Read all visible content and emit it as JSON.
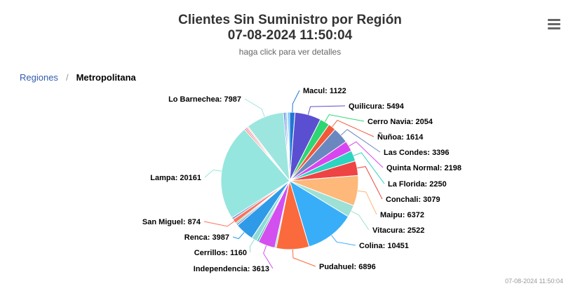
{
  "chart_data": {
    "type": "pie",
    "title": "Clientes Sin Suministro por Región",
    "subtitle": "07-08-2024 11:50:04",
    "caption": "haga click para ver detalles",
    "series": [
      {
        "name": "Macul",
        "value": 1122,
        "color": "#1f77d4"
      },
      {
        "name": "Quilicura",
        "value": 5494,
        "color": "#5b4fd1"
      },
      {
        "name": "Cerro Navia",
        "value": 2054,
        "color": "#2ed573"
      },
      {
        "name": "Ñuñoa",
        "value": 1614,
        "color": "#f05a3a"
      },
      {
        "name": "Las Condes",
        "value": 3396,
        "color": "#6b87c0"
      },
      {
        "name": "Quinta Normal",
        "value": 2198,
        "color": "#d946ef"
      },
      {
        "name": "La Florida",
        "value": 2250,
        "color": "#2dd4bf"
      },
      {
        "name": "Conchali",
        "value": 3079,
        "color": "#ef4444"
      },
      {
        "name": "Maipu",
        "value": 6372,
        "color": "#fdb87a"
      },
      {
        "name": "Vitacura",
        "value": 2522,
        "color": "#9de0d5"
      },
      {
        "name": "Colina",
        "value": 10451,
        "color": "#38aef8"
      },
      {
        "name": "Pudahuel",
        "value": 6896,
        "color": "#fb6a3c"
      },
      {
        "name": "",
        "value": 300,
        "color": "#60e6b0"
      },
      {
        "name": "Independencia",
        "value": 3613,
        "color": "#d44ff0"
      },
      {
        "name": "",
        "value": 400,
        "color": "#2bbfa0"
      },
      {
        "name": "Cerrillos",
        "value": 1160,
        "color": "#8fdad8"
      },
      {
        "name": "Renca",
        "value": 3987,
        "color": "#2f9be8"
      },
      {
        "name": "",
        "value": 350,
        "color": "#7c6fd6"
      },
      {
        "name": "",
        "value": 300,
        "color": "#4ade80"
      },
      {
        "name": "San Miguel",
        "value": 874,
        "color": "#f97362"
      },
      {
        "name": "",
        "value": 450,
        "color": "#8798cf"
      },
      {
        "name": "Lampa",
        "value": 20161,
        "color": "#95e6de"
      },
      {
        "name": "",
        "value": 350,
        "color": "#fb8a55"
      },
      {
        "name": "",
        "value": 300,
        "color": "#d966f0"
      },
      {
        "name": "",
        "value": 300,
        "color": "#fdd28a"
      },
      {
        "name": "Lo Barnechea",
        "value": 7987,
        "color": "#9de6e0"
      },
      {
        "name": "",
        "value": 350,
        "color": "#5b6fd6"
      },
      {
        "name": "",
        "value": 300,
        "color": "#3b82f6"
      },
      {
        "name": "",
        "value": 300,
        "color": "#9be0dc"
      },
      {
        "name": "",
        "value": 350,
        "color": "#3fa9f5"
      }
    ]
  },
  "breadcrumb": {
    "parent": "Regiones",
    "separator": "/",
    "current": "Metropolitana"
  },
  "credits": "07-08-2024 11:50:04",
  "menu_icon": "hamburger-menu-icon"
}
